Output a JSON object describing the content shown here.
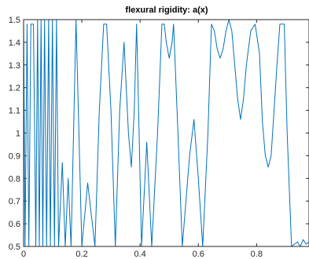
{
  "chart_data": {
    "type": "line",
    "title": "flexural rigidity: a(x)",
    "xlabel": "",
    "ylabel": "",
    "xlim": [
      0,
      0.98
    ],
    "ylim": [
      0.5,
      1.5
    ],
    "grid": false,
    "x_ticks": [
      0,
      0.2,
      0.4,
      0.6,
      0.8
    ],
    "x_tick_labels": [
      "0",
      "0.2",
      "0.4",
      "0.6",
      "0.8"
    ],
    "y_ticks": [
      0.5,
      0.6,
      0.7,
      0.8,
      0.9,
      1.0,
      1.1,
      1.2,
      1.3,
      1.4,
      1.5
    ],
    "y_tick_labels": [
      "0.5",
      "0.6",
      "0.7",
      "0.8",
      "0.9",
      "1",
      "1.1",
      "1.2",
      "1.3",
      "1.4",
      "1.5"
    ],
    "colors": {
      "line": "#0072bd",
      "axes": "#262626",
      "background": "#ffffff"
    },
    "series": [
      {
        "points": [
          [
            0.0,
            1.5
          ],
          [
            0.005,
            0.5
          ],
          [
            0.012,
            1.48
          ],
          [
            0.018,
            0.5
          ],
          [
            0.025,
            1.48
          ],
          [
            0.034,
            1.48
          ],
          [
            0.042,
            0.5
          ],
          [
            0.048,
            1.5
          ],
          [
            0.054,
            0.5
          ],
          [
            0.06,
            1.5
          ],
          [
            0.066,
            0.5
          ],
          [
            0.072,
            1.5
          ],
          [
            0.079,
            0.5
          ],
          [
            0.086,
            1.5
          ],
          [
            0.092,
            0.5
          ],
          [
            0.099,
            1.5
          ],
          [
            0.106,
            0.5
          ],
          [
            0.113,
            1.5
          ],
          [
            0.12,
            0.5
          ],
          [
            0.133,
            0.87
          ],
          [
            0.143,
            0.5
          ],
          [
            0.153,
            0.8
          ],
          [
            0.163,
            0.5
          ],
          [
            0.18,
            1.5
          ],
          [
            0.2,
            0.5
          ],
          [
            0.22,
            0.78
          ],
          [
            0.245,
            0.5
          ],
          [
            0.26,
            1.1
          ],
          [
            0.275,
            1.48
          ],
          [
            0.285,
            1.48
          ],
          [
            0.3,
            1.1
          ],
          [
            0.315,
            0.5
          ],
          [
            0.33,
            1.1
          ],
          [
            0.345,
            1.4
          ],
          [
            0.36,
            1.0
          ],
          [
            0.37,
            0.85
          ],
          [
            0.38,
            1.1
          ],
          [
            0.388,
            1.48
          ],
          [
            0.395,
            1.1
          ],
          [
            0.405,
            0.5
          ],
          [
            0.423,
            0.96
          ],
          [
            0.44,
            0.5
          ],
          [
            0.46,
            1.0
          ],
          [
            0.475,
            1.48
          ],
          [
            0.483,
            1.48
          ],
          [
            0.49,
            1.4
          ],
          [
            0.5,
            1.33
          ],
          [
            0.51,
            1.4
          ],
          [
            0.515,
            1.48
          ],
          [
            0.53,
            1.0
          ],
          [
            0.545,
            0.5
          ],
          [
            0.57,
            0.9
          ],
          [
            0.585,
            1.06
          ],
          [
            0.6,
            0.8
          ],
          [
            0.615,
            0.5
          ],
          [
            0.633,
            1.0
          ],
          [
            0.645,
            1.48
          ],
          [
            0.655,
            1.45
          ],
          [
            0.665,
            1.37
          ],
          [
            0.675,
            1.33
          ],
          [
            0.685,
            1.37
          ],
          [
            0.695,
            1.45
          ],
          [
            0.705,
            1.5
          ],
          [
            0.715,
            1.45
          ],
          [
            0.725,
            1.3
          ],
          [
            0.735,
            1.15
          ],
          [
            0.745,
            1.06
          ],
          [
            0.755,
            1.15
          ],
          [
            0.765,
            1.3
          ],
          [
            0.78,
            1.45
          ],
          [
            0.795,
            1.48
          ],
          [
            0.81,
            1.35
          ],
          [
            0.82,
            1.05
          ],
          [
            0.83,
            0.9
          ],
          [
            0.84,
            0.85
          ],
          [
            0.85,
            0.9
          ],
          [
            0.86,
            1.1
          ],
          [
            0.87,
            1.3
          ],
          [
            0.88,
            1.48
          ],
          [
            0.895,
            1.48
          ],
          [
            0.905,
            1.0
          ],
          [
            0.92,
            0.5
          ],
          [
            0.94,
            0.52
          ],
          [
            0.95,
            0.5
          ],
          [
            0.96,
            0.53
          ],
          [
            0.97,
            0.51
          ],
          [
            0.98,
            0.52
          ]
        ]
      }
    ]
  }
}
